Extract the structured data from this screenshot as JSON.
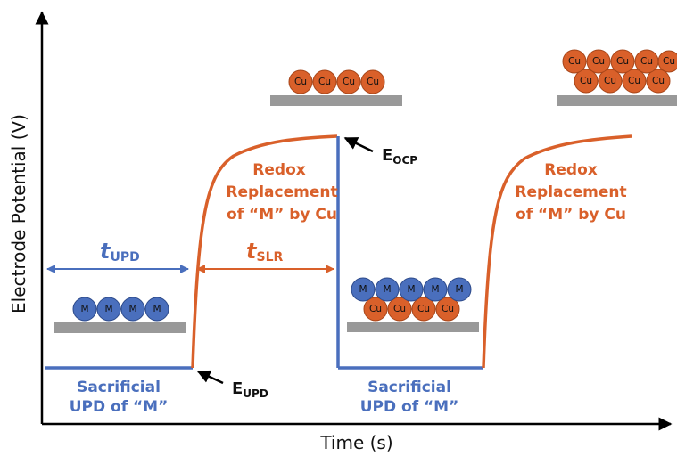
{
  "axes": {
    "y_label": "Electrode Potential (V)",
    "x_label": "Time (s)"
  },
  "atoms": {
    "cu": "Cu",
    "m": "M"
  },
  "labels": {
    "sacrificial_line1": "Sacrificial",
    "sacrificial_line2": "UPD of “M”",
    "redox_line1": "Redox",
    "redox_line2": "Replacement",
    "redox_line3": "of “M” by Cu",
    "t_symbol": "t",
    "t_upd_sub": "UPD",
    "t_slr_sub": "SLR",
    "e_symbol": "E",
    "e_upd_sub": "UPD",
    "e_ocp_sub": "OCP"
  },
  "colors": {
    "orange": "#d9602a",
    "blue": "#4a6fbd",
    "substrate": "#999999",
    "axis": "#000000"
  }
}
